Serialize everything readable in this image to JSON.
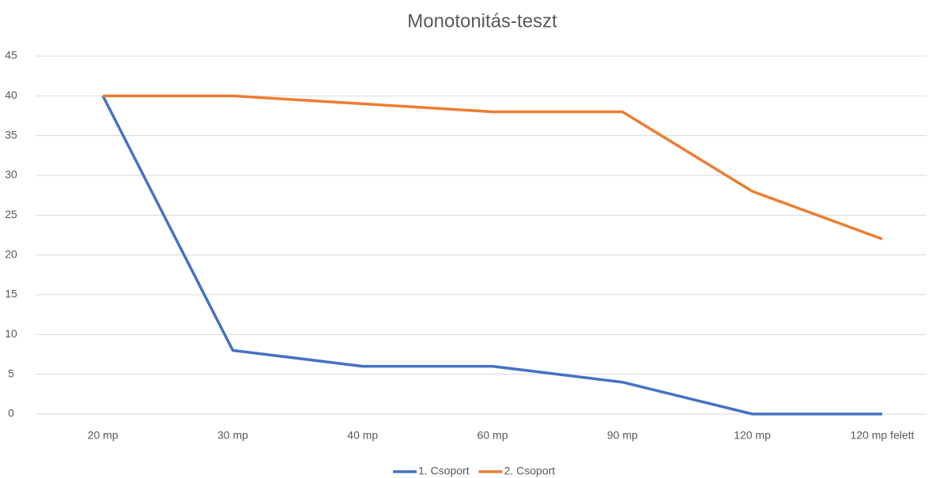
{
  "chart_data": {
    "type": "line",
    "title": "Monotonitás-teszt",
    "categories": [
      "20 mp",
      "30 mp",
      "40 mp",
      "60 mp",
      "90 mp",
      "120 mp",
      "120 mp felett"
    ],
    "series": [
      {
        "name": "1. Csoport",
        "color": "#4472c4",
        "values": [
          40,
          8,
          6,
          6,
          4,
          0,
          0
        ]
      },
      {
        "name": "2. Csoport",
        "color": "#ed7d31",
        "values": [
          40,
          40,
          39,
          38,
          38,
          28,
          22
        ]
      }
    ],
    "ylim": [
      0,
      45
    ],
    "yticks": [
      0,
      5,
      10,
      15,
      20,
      25,
      30,
      35,
      40,
      45
    ],
    "grid": true,
    "legend": "bottom"
  }
}
